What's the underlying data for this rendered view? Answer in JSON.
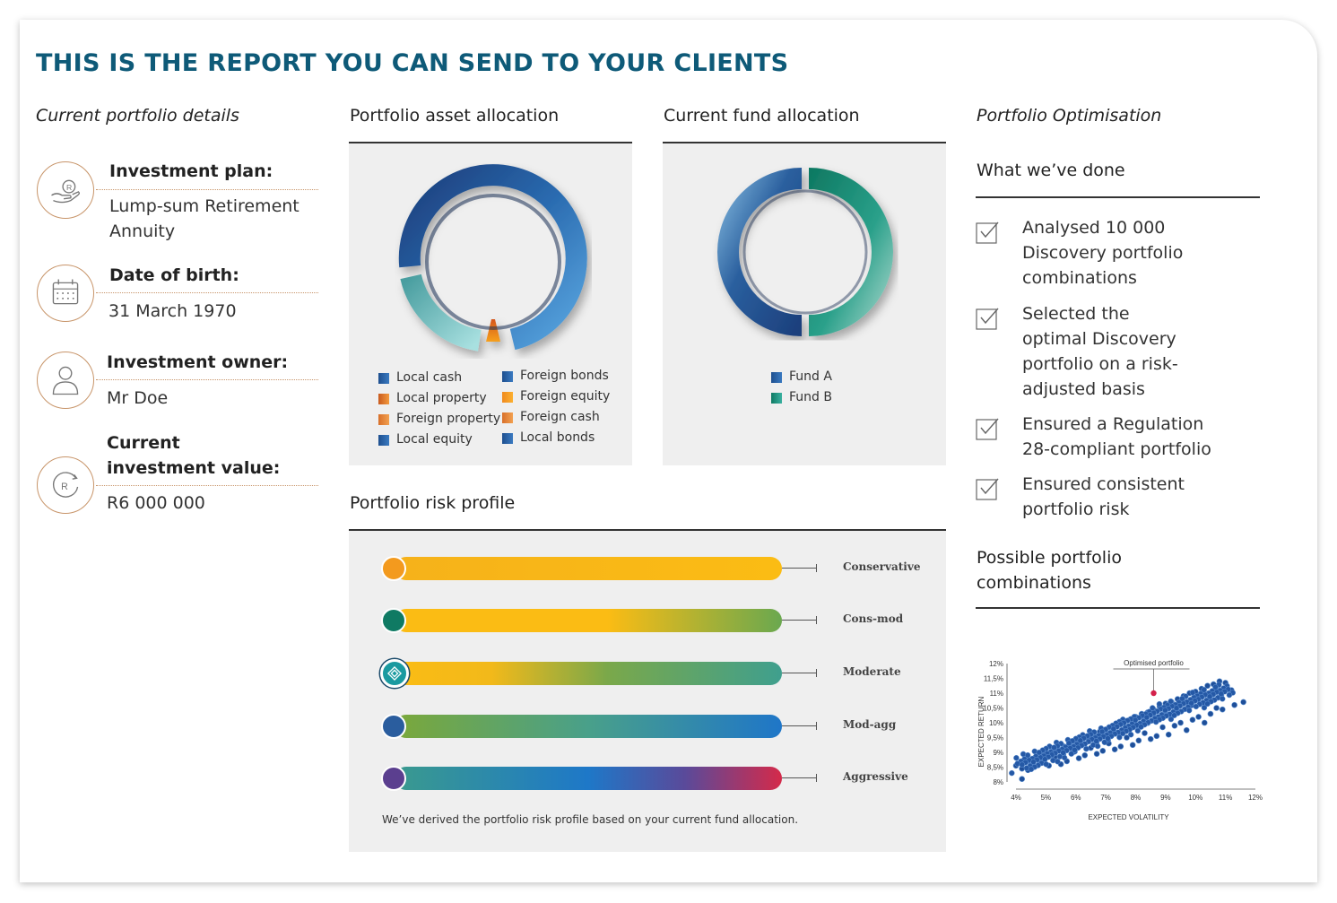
{
  "header": {
    "title": "THIS IS THE REPORT YOU CAN SEND TO YOUR CLIENTS"
  },
  "colors": {
    "title": "#0e5a78",
    "accent_copper": "#c8956a",
    "panel_bg": "#efefef"
  },
  "current_portfolio": {
    "heading": "Current portfolio details",
    "details": [
      {
        "icon": "hand-rand-icon",
        "label": "Investment plan:",
        "value_lines": [
          "Lump-sum Retirement",
          "Annuity"
        ]
      },
      {
        "icon": "calendar-icon",
        "label": "Date of birth:",
        "value_lines": [
          "31 March 1970"
        ]
      },
      {
        "icon": "person-icon",
        "label": "Investment owner:",
        "value_lines": [
          "Mr Doe"
        ]
      },
      {
        "icon": "rand-growth-icon",
        "label_lines": [
          "Current",
          "investment value:"
        ],
        "value_lines": [
          "R6 000 000"
        ]
      }
    ]
  },
  "asset_allocation": {
    "heading": "Portfolio asset allocation",
    "legend": [
      {
        "label": "Local cash",
        "color": "#1e4f8f"
      },
      {
        "label": "Foreign bonds",
        "color": "#2a6bb0"
      },
      {
        "label": "Local property",
        "color": "#e07a2a"
      },
      {
        "label": "Foreign equity",
        "color": "#f39a1e"
      },
      {
        "label": "Foreign property",
        "color": "#e8853a"
      },
      {
        "label": "Foreign cash",
        "color": "#e48a3a"
      },
      {
        "label": "Local equity",
        "color": "#2a5f9e"
      },
      {
        "label": "Local bonds",
        "color": "#2d66ab"
      }
    ]
  },
  "fund_allocation": {
    "heading": "Current fund allocation",
    "legend": [
      {
        "label": "Fund A",
        "color": "#1f4f8c"
      },
      {
        "label": "Fund B",
        "color": "#24927e"
      }
    ]
  },
  "risk_profile": {
    "heading": "Portfolio risk profile",
    "rows": [
      {
        "label": "Conservative",
        "dot_color": "#f39a1e",
        "gradient": "linear-gradient(90deg,#f6b21a 0%,#fbbc14 100%)"
      },
      {
        "label": "Cons-mod",
        "dot_color": "#0f7a63",
        "gradient": "linear-gradient(90deg,#fbbc14 0%,#fbbc14 55%,#6aa84f 100%)"
      },
      {
        "label": "Moderate",
        "dot_color": "#1a9aa0",
        "gradient": "linear-gradient(90deg,#fbbc14 0%,#f2b91a 25%,#7aa84a 55%,#3f9f8e 100%)",
        "current": true
      },
      {
        "label": "Mod-agg",
        "dot_color": "#2a5d9e",
        "gradient": "linear-gradient(90deg,#7ba83a 0%,#49a08a 50%,#1f76c8 100%)"
      },
      {
        "label": "Aggressive",
        "dot_color": "#5b3f8f",
        "gradient": "linear-gradient(90deg,#3a9a8e 0%,#1e78c8 50%,#5a4a9a 75%,#d42a4a 100%)"
      }
    ],
    "note": "We’ve derived the portfolio risk profile based on your current fund allocation."
  },
  "optimisation": {
    "heading": "Portfolio Optimisation",
    "done_heading": "What we’ve done",
    "items": [
      {
        "lines": [
          "Analysed 10 000",
          "Discovery portfolio",
          "combinations"
        ]
      },
      {
        "lines": [
          "Selected the",
          "optimal Discovery",
          "portfolio on a risk-",
          "adjusted basis"
        ]
      },
      {
        "lines": [
          "Ensured a Regulation",
          "28-compliant portfolio"
        ]
      },
      {
        "lines": [
          "Ensured consistent",
          "portfolio risk"
        ]
      }
    ],
    "combinations_heading_lines": [
      "Possible portfolio",
      "combinations"
    ]
  },
  "chart_data": {
    "type": "scatter",
    "title": "",
    "xlabel": "EXPECTED VOLATILITY",
    "ylabel": "EXPECTED RETURN",
    "x_ticks": [
      "4%",
      "5%",
      "6%",
      "7%",
      "8%",
      "9%",
      "10%",
      "11%",
      "12%"
    ],
    "y_ticks": [
      "8%",
      "8,5%",
      "9%",
      "9,5%",
      "10%",
      "10,5%",
      "11%",
      "11,5%",
      "12%"
    ],
    "xlim": [
      4,
      12
    ],
    "ylim": [
      8,
      12
    ],
    "annotation": "Optimised portfolio",
    "optimised_point": {
      "x": 8.6,
      "y": 11.0
    },
    "series": [
      {
        "x": [
          4.0,
          4.2,
          4.3,
          4.5,
          4.7,
          4.9,
          5.0,
          5.2,
          5.4,
          5.6,
          5.8,
          6.0,
          6.2,
          6.4,
          6.6,
          6.8,
          7.0,
          7.2,
          7.4,
          7.6,
          7.8,
          8.0,
          8.2,
          8.4,
          8.6,
          8.8,
          9.0,
          9.2,
          9.4,
          9.6,
          9.8,
          10.0,
          10.2,
          10.4,
          10.6,
          10.8,
          11.0,
          11.2,
          11.6,
          4.2,
          4.8,
          5.3,
          5.9,
          6.5,
          7.1,
          7.7,
          8.3,
          8.9,
          9.5,
          10.1,
          10.7,
          4.6,
          5.5,
          6.3,
          7.3,
          8.1,
          9.1,
          9.9,
          10.5,
          11.3,
          5.1,
          6.1,
          6.9,
          7.9,
          8.7,
          9.7,
          10.3,
          4.4,
          5.7,
          6.7,
          7.5,
          8.5,
          9.3,
          10.9,
          4.2
        ],
        "y": [
          8.55,
          8.6,
          8.7,
          8.75,
          8.8,
          8.9,
          8.95,
          9.05,
          9.1,
          9.2,
          9.25,
          9.35,
          9.45,
          9.5,
          9.6,
          9.7,
          9.75,
          9.85,
          9.95,
          10.0,
          10.1,
          10.2,
          10.3,
          10.35,
          10.45,
          10.55,
          10.65,
          10.7,
          10.8,
          10.9,
          11.0,
          11.05,
          11.15,
          11.25,
          11.3,
          11.4,
          11.35,
          11.1,
          10.7,
          8.45,
          8.65,
          8.85,
          9.0,
          9.15,
          9.3,
          9.5,
          9.65,
          9.85,
          10.0,
          10.2,
          10.5,
          8.5,
          8.6,
          8.9,
          9.1,
          9.4,
          9.6,
          10.1,
          10.3,
          10.6,
          8.55,
          8.8,
          9.05,
          9.25,
          9.55,
          9.75,
          10.0,
          8.4,
          8.7,
          8.95,
          9.2,
          9.45,
          9.9,
          10.45,
          8.1
        ]
      }
    ]
  }
}
